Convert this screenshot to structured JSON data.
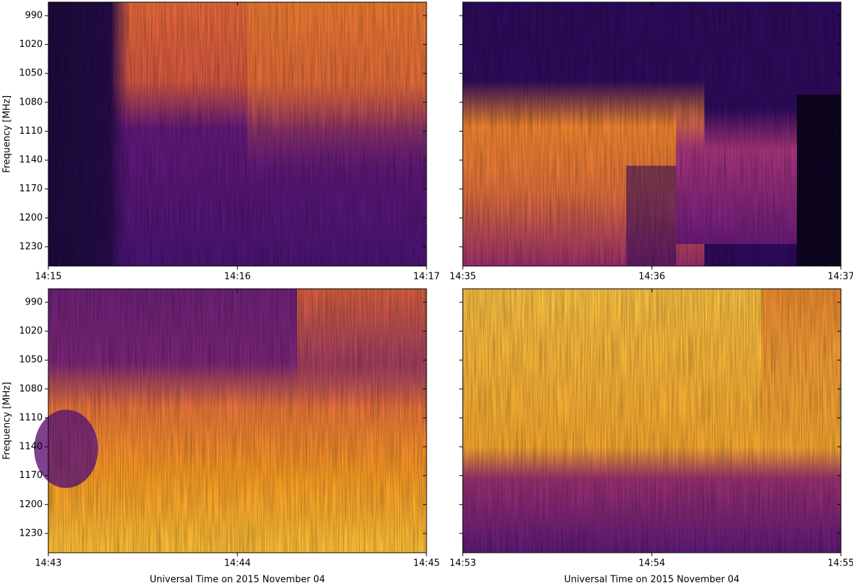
{
  "chart_data": [
    {
      "type": "spectrogram",
      "ylabel": "Frequency [MHz]",
      "y_inverted": true,
      "ytick_labels": true,
      "xlim": [
        855,
        857
      ],
      "xticks": [
        {
          "value": 855,
          "label": "14:15"
        },
        {
          "value": 856,
          "label": "14:16"
        },
        {
          "value": 857,
          "label": "14:17"
        }
      ],
      "ylim": [
        976,
        1250
      ],
      "yticks": [
        990,
        1020,
        1050,
        1080,
        1110,
        1140,
        1170,
        1200,
        1230
      ]
    },
    {
      "type": "spectrogram",
      "y_inverted": true,
      "ytick_labels": false,
      "xlim": [
        875,
        877
      ],
      "xticks": [
        {
          "value": 875,
          "label": "14:35"
        },
        {
          "value": 876,
          "label": "14:36"
        },
        {
          "value": 877,
          "label": "14:37"
        }
      ],
      "ylim": [
        976,
        1250
      ],
      "yticks": [
        990,
        1020,
        1050,
        1080,
        1110,
        1140,
        1170,
        1200,
        1230
      ]
    },
    {
      "type": "spectrogram",
      "ylabel": "Frequency [MHz]",
      "xlabel": "Universal Time on 2015 November 04",
      "y_inverted": true,
      "ytick_labels": true,
      "xlim": [
        883,
        885
      ],
      "xticks": [
        {
          "value": 883,
          "label": "14:43"
        },
        {
          "value": 884,
          "label": "14:44"
        },
        {
          "value": 885,
          "label": "14:45"
        }
      ],
      "ylim": [
        976,
        1250
      ],
      "yticks": [
        990,
        1020,
        1050,
        1080,
        1110,
        1140,
        1170,
        1200,
        1230
      ]
    },
    {
      "type": "spectrogram",
      "xlabel": "Universal Time on 2015 November 04",
      "y_inverted": true,
      "ytick_labels": false,
      "xlim": [
        893,
        895
      ],
      "xticks": [
        {
          "value": 893,
          "label": "14:53"
        },
        {
          "value": 894,
          "label": "14:54"
        },
        {
          "value": 895,
          "label": "14:55"
        }
      ],
      "ylim": [
        976,
        1250
      ],
      "yticks": [
        990,
        1020,
        1050,
        1080,
        1110,
        1140,
        1170,
        1200,
        1230
      ]
    }
  ]
}
